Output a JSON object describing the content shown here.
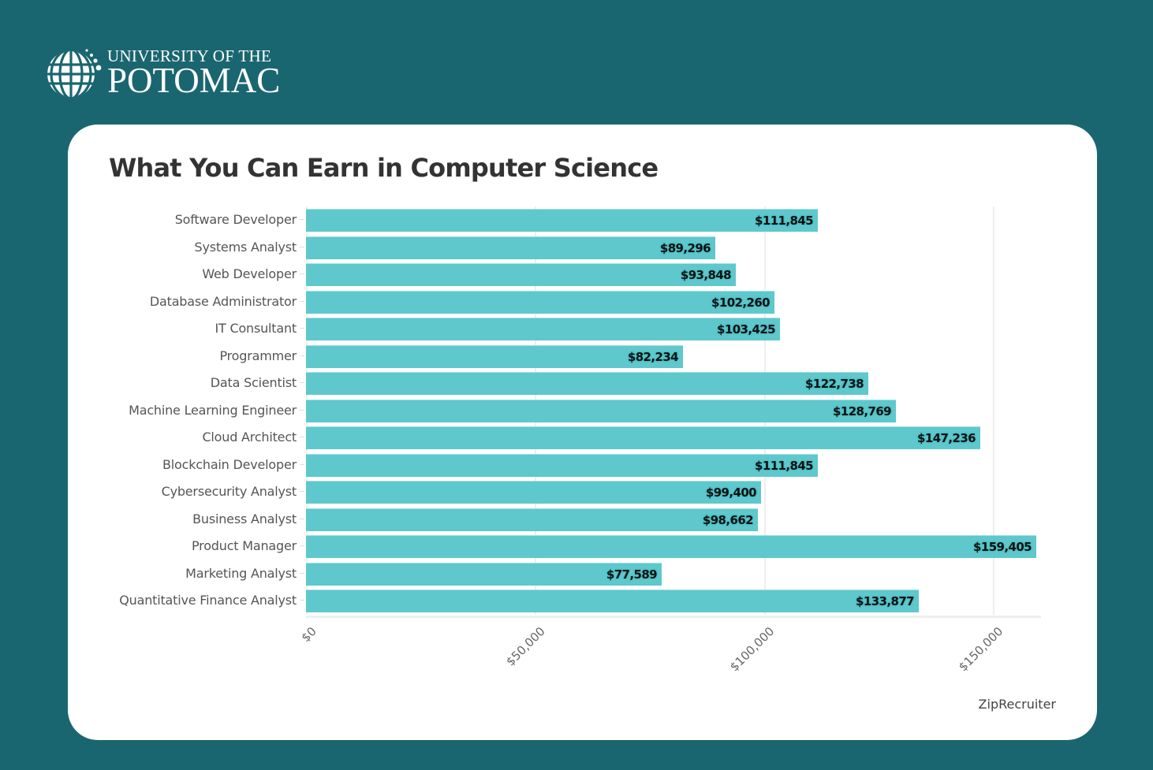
{
  "logo": {
    "line1": "UNIVERSITY OF THE",
    "line2": "POTOMAC",
    "icon": "globe-icon"
  },
  "colors": {
    "background": "#1a6670",
    "card": "#ffffff",
    "bar": "#5ec8cd",
    "title": "#333333"
  },
  "chart": {
    "title": "What You Can Earn in Computer Science",
    "source": "ZipRecruiter",
    "x_ticks": [
      "$0",
      "$50,000",
      "$100,000",
      "$150,000"
    ]
  },
  "chart_data": {
    "type": "bar",
    "orientation": "horizontal",
    "title": "What You Can Earn in Computer Science",
    "xlabel": "",
    "ylabel": "",
    "source": "ZipRecruiter",
    "xlim": [
      0,
      160000
    ],
    "x_ticks": [
      0,
      50000,
      100000,
      150000
    ],
    "x_tick_labels": [
      "$0",
      "$50,000",
      "$100,000",
      "$150,000"
    ],
    "grid": true,
    "legend": null,
    "categories": [
      "Software Developer",
      "Systems Analyst",
      "Web Developer",
      "Database Administrator",
      "IT Consultant",
      "Programmer",
      "Data Scientist",
      "Machine Learning Engineer",
      "Cloud Architect",
      "Blockchain Developer",
      "Cybersecurity Analyst",
      "Business Analyst",
      "Product Manager",
      "Marketing Analyst",
      "Quantitative Finance Analyst"
    ],
    "values": [
      111845,
      89296,
      93848,
      102260,
      103425,
      82234,
      122738,
      128769,
      147236,
      111845,
      99400,
      98662,
      159405,
      77589,
      133877
    ],
    "value_labels": [
      "$111,845",
      "$89,296",
      "$93,848",
      "$102,260",
      "$103,425",
      "$82,234",
      "$122,738",
      "$128,769",
      "$147,236",
      "$111,845",
      "$99,400",
      "$98,662",
      "$159,405",
      "$77,589",
      "$133,877"
    ]
  }
}
